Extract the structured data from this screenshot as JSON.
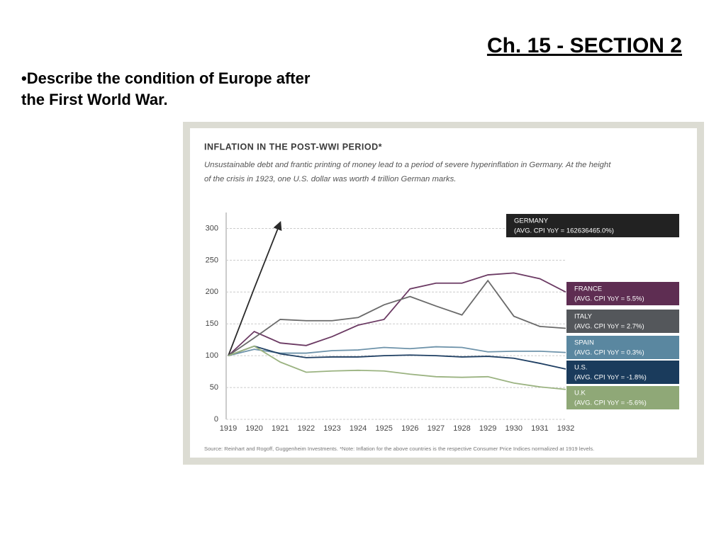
{
  "slide": {
    "heading": "Ch. 15 - SECTION 2",
    "bullet": [
      "•Describe the condition of Europe after",
      "the First World War."
    ]
  },
  "chart_data": {
    "type": "line",
    "title": "INFLATION IN THE POST-WWI PERIOD*",
    "subtitle": [
      "Unsustainable debt and frantic printing of money lead to a period of severe hyperinflation in Germany. At the height",
      "of the crisis in 1923, one U.S. dollar was worth 4 trillion German marks."
    ],
    "source": "Source: Reinhart and Rogoff, Guggenheim Investments. *Note: Inflation for the above countries is the respective Consumer Price Indices normalized at 1919 levels.",
    "categories": [
      "1919",
      "1920",
      "1921",
      "1922",
      "1923",
      "1924",
      "1925",
      "1926",
      "1927",
      "1928",
      "1929",
      "1930",
      "1931",
      "1932"
    ],
    "ylim": [
      0,
      325
    ],
    "yticks": [
      0,
      50,
      100,
      150,
      200,
      250,
      300
    ],
    "grid": true,
    "series": [
      {
        "name": "GERMANY",
        "note": "(AVG. CPI YoY = 162636465.0%)",
        "color": "#2a2a2a",
        "box": "#222222",
        "values": [
          100,
          206,
          309,
          null,
          null,
          null,
          null,
          null,
          null,
          null,
          null,
          null,
          null,
          null
        ]
      },
      {
        "name": "FRANCE",
        "note": "(AVG. CPI YoY = 5.5%)",
        "color": "#6b3a63",
        "box": "#5e2d52",
        "values": [
          100,
          138,
          120,
          116,
          130,
          148,
          157,
          205,
          214,
          214,
          227,
          230,
          221,
          200
        ]
      },
      {
        "name": "ITALY",
        "note": "(AVG. CPI YoY = 2.7%)",
        "color": "#6a6a6a",
        "box": "#54575b",
        "values": [
          100,
          128,
          157,
          155,
          155,
          160,
          180,
          193,
          178,
          164,
          218,
          162,
          146,
          143
        ]
      },
      {
        "name": "SPAIN",
        "note": "(AVG. CPI YoY = 0.3%)",
        "color": "#6e93aa",
        "box": "#5a87a0",
        "values": [
          100,
          110,
          104,
          104,
          108,
          109,
          113,
          111,
          114,
          113,
          106,
          107,
          107,
          105
        ]
      },
      {
        "name": "U.S.",
        "note": "(AVG. CPI YoY = -1.8%)",
        "color": "#1f3f63",
        "box": "#1a3b5c",
        "values": [
          100,
          115,
          103,
          97,
          98,
          98,
          100,
          101,
          100,
          98,
          99,
          96,
          88,
          79
        ]
      },
      {
        "name": "U.K",
        "note": "(AVG. CPI YoY = -5.6%)",
        "color": "#9bb381",
        "box": "#8fa877",
        "values": [
          100,
          115,
          90,
          74,
          76,
          77,
          76,
          71,
          67,
          66,
          67,
          57,
          51,
          47
        ]
      }
    ]
  }
}
